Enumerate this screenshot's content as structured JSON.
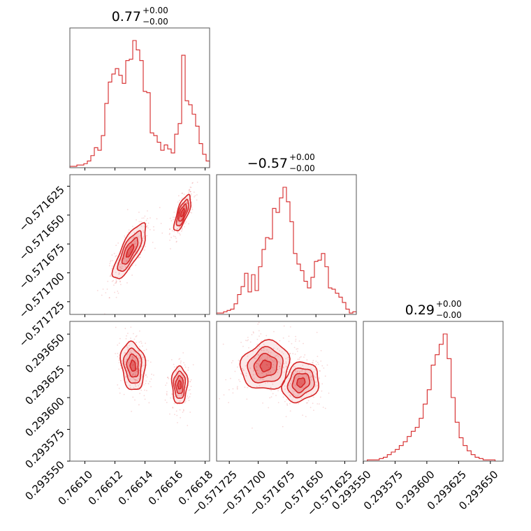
{
  "chart_data": {
    "type": "corner",
    "color": "#d62728",
    "parameters": [
      {
        "title_value": "0.77",
        "title_plus": "+0.00",
        "title_minus": "−0.00",
        "range": [
          0.76609,
          0.766183
        ],
        "ticks": [
          {
            "value": 0.7661,
            "label": "0.76610"
          },
          {
            "value": 0.76612,
            "label": "0.76612"
          },
          {
            "value": 0.76614,
            "label": "0.76614"
          },
          {
            "value": 0.76616,
            "label": "0.76616"
          },
          {
            "value": 0.76618,
            "label": "0.76618"
          }
        ],
        "hist": [
          0.01,
          0.01,
          0.02,
          0.02,
          0.03,
          0.05,
          0.09,
          0.15,
          0.13,
          0.24,
          0.48,
          0.64,
          0.7,
          0.74,
          0.69,
          0.63,
          0.8,
          0.81,
          0.95,
          0.88,
          0.8,
          0.57,
          0.56,
          0.26,
          0.24,
          0.19,
          0.13,
          0.17,
          0.14,
          0.11,
          0.25,
          0.33,
          0.84,
          0.5,
          0.47,
          0.4,
          0.31,
          0.18,
          0.1,
          0.05
        ]
      },
      {
        "title_value": "−0.57",
        "title_plus": "+0.00",
        "title_minus": "−0.00",
        "range": [
          -0.571736,
          -0.571615
        ],
        "ticks": [
          {
            "value": -0.571725,
            "label": "−0.571725"
          },
          {
            "value": -0.5717,
            "label": "−0.571700"
          },
          {
            "value": -0.571675,
            "label": "−0.571675"
          },
          {
            "value": -0.57165,
            "label": "−0.571650"
          },
          {
            "value": -0.571625,
            "label": "−0.571625"
          }
        ],
        "hist": [
          0.01,
          0.01,
          0.02,
          0.03,
          0.04,
          0.08,
          0.15,
          0.21,
          0.31,
          0.17,
          0.3,
          0.18,
          0.36,
          0.49,
          0.58,
          0.57,
          0.8,
          0.77,
          0.88,
          0.96,
          0.85,
          0.7,
          0.46,
          0.38,
          0.33,
          0.25,
          0.2,
          0.28,
          0.4,
          0.41,
          0.46,
          0.36,
          0.2,
          0.19,
          0.16,
          0.13,
          0.09,
          0.04,
          0.01,
          0.02
        ]
      },
      {
        "title_value": "0.29",
        "title_plus": "+0.00",
        "title_minus": "−0.00",
        "range": [
          0.29355,
          0.29366
        ],
        "ticks": [
          {
            "value": 0.29355,
            "label": "0.293550"
          },
          {
            "value": 0.293575,
            "label": "0.293575"
          },
          {
            "value": 0.2936,
            "label": "0.293600"
          },
          {
            "value": 0.293625,
            "label": "0.293625"
          },
          {
            "value": 0.29365,
            "label": "0.293650"
          }
        ],
        "hist": [
          0.0,
          0.01,
          0.01,
          0.01,
          0.02,
          0.03,
          0.05,
          0.07,
          0.09,
          0.12,
          0.15,
          0.19,
          0.23,
          0.26,
          0.33,
          0.44,
          0.55,
          0.74,
          0.82,
          0.9,
          0.98,
          0.79,
          0.49,
          0.3,
          0.18,
          0.12,
          0.08,
          0.05,
          0.03,
          0.02,
          0.01,
          0.01,
          0.01,
          0.0,
          0.0
        ]
      }
    ],
    "pairs": [
      {
        "x_param": 0,
        "y_param": 1,
        "blobs": [
          {
            "x": 0.76613,
            "y": -0.5716812,
            "sx": 5.5e-06,
            "sy": 1.2e-05,
            "rho": 0.78,
            "w": 1.0
          },
          {
            "x": 0.766165,
            "y": -0.571648,
            "sx": 3e-06,
            "sy": 8.5e-06,
            "rho": 0.72,
            "w": 0.65
          }
        ]
      },
      {
        "x_param": 0,
        "y_param": 2,
        "blobs": [
          {
            "x": 0.766132,
            "y": 0.293625,
            "sx": 4e-06,
            "sy": 9.5e-06,
            "rho": -0.15,
            "w": 1.0
          },
          {
            "x": 0.766163,
            "y": 0.29361,
            "sx": 2.8e-06,
            "sy": 8e-06,
            "rho": 0.0,
            "w": 0.6
          }
        ]
      },
      {
        "x_param": 1,
        "y_param": 2,
        "blobs": [
          {
            "x": -0.5716935,
            "y": 0.293625,
            "sx": 1.05e-05,
            "sy": 9.5e-06,
            "rho": 0.1,
            "w": 1.0
          },
          {
            "x": -0.571663,
            "y": 0.293612,
            "sx": 8.5e-06,
            "sy": 8.5e-06,
            "rho": 0.2,
            "w": 0.6
          }
        ]
      }
    ]
  }
}
